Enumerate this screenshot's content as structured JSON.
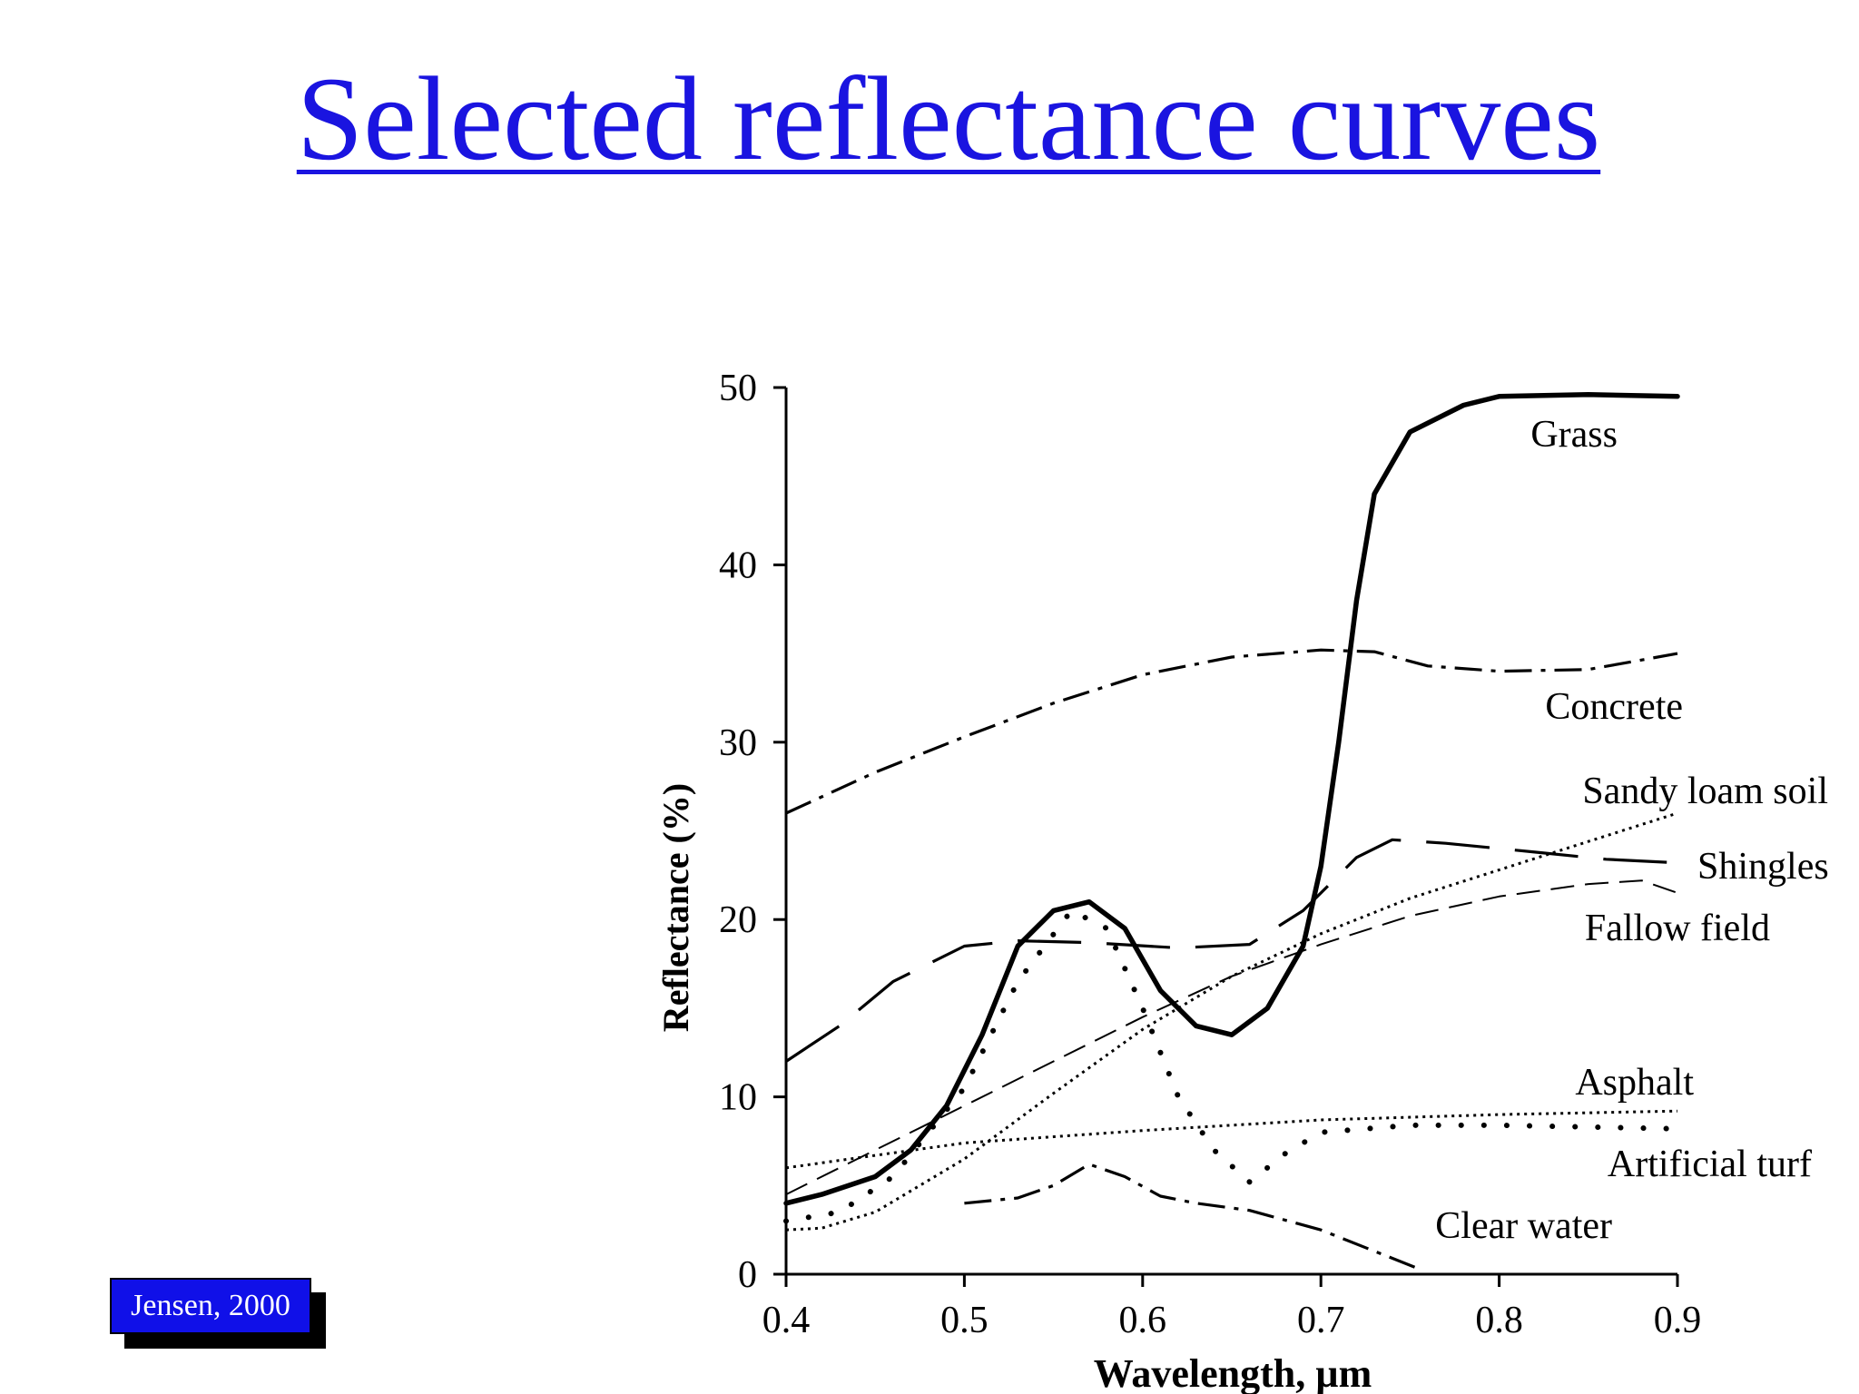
{
  "slide": {
    "title": "Selected reflectance curves",
    "citation": "Jensen, 2000"
  },
  "colors": {
    "title": "#1a14e0",
    "citation_bg": "#1010e8",
    "citation_text": "#ffffff"
  },
  "chart_data": {
    "type": "line",
    "xlabel": "Wavelength, µm",
    "ylabel": "Reflectance (%)",
    "xlim": [
      0.4,
      0.9
    ],
    "ylim": [
      0,
      50
    ],
    "xticks": [
      "0.4",
      "0.5",
      "0.6",
      "0.7",
      "0.8",
      "0.9"
    ],
    "yticks": [
      "0",
      "10",
      "20",
      "30",
      "40",
      "50"
    ],
    "grid": false,
    "legend": "inline labels at right end of each curve",
    "series": [
      {
        "name": "Grass",
        "style": "solid-thick",
        "x": [
          0.4,
          0.42,
          0.45,
          0.47,
          0.49,
          0.51,
          0.53,
          0.55,
          0.57,
          0.59,
          0.61,
          0.63,
          0.65,
          0.67,
          0.69,
          0.7,
          0.71,
          0.72,
          0.73,
          0.75,
          0.78,
          0.8,
          0.85,
          0.9
        ],
        "y": [
          4,
          4.5,
          5.5,
          7,
          9.5,
          13.5,
          18.5,
          20.5,
          21,
          19.5,
          16,
          14,
          13.5,
          15,
          18.5,
          23,
          30,
          38,
          44,
          47.5,
          49,
          49.5,
          49.6,
          49.5
        ]
      },
      {
        "name": "Concrete",
        "style": "dash-dot",
        "x": [
          0.4,
          0.45,
          0.5,
          0.55,
          0.6,
          0.65,
          0.7,
          0.73,
          0.76,
          0.8,
          0.85,
          0.9
        ],
        "y": [
          26,
          28.3,
          30.3,
          32.2,
          33.8,
          34.8,
          35.2,
          35.1,
          34.3,
          34,
          34.1,
          35
        ]
      },
      {
        "name": "Sandy loam soil",
        "style": "dotted-fine",
        "x": [
          0.4,
          0.42,
          0.45,
          0.5,
          0.55,
          0.6,
          0.65,
          0.7,
          0.75,
          0.8,
          0.85,
          0.9
        ],
        "y": [
          2.5,
          2.6,
          3.5,
          6.5,
          10.2,
          13.8,
          16.8,
          19.2,
          21.2,
          22.8,
          24.4,
          26
        ]
      },
      {
        "name": "Shingles",
        "style": "long-dash",
        "x": [
          0.4,
          0.43,
          0.46,
          0.5,
          0.53,
          0.57,
          0.62,
          0.66,
          0.69,
          0.72,
          0.74,
          0.77,
          0.82,
          0.86,
          0.9
        ],
        "y": [
          12,
          14,
          16.5,
          18.5,
          18.8,
          18.7,
          18.4,
          18.6,
          20.5,
          23.5,
          24.5,
          24.3,
          23.8,
          23.4,
          23.2
        ]
      },
      {
        "name": "Fallow field",
        "style": "dashed-thin",
        "x": [
          0.4,
          0.45,
          0.5,
          0.55,
          0.6,
          0.65,
          0.7,
          0.75,
          0.8,
          0.85,
          0.88,
          0.9
        ],
        "y": [
          4.5,
          7,
          9.5,
          12,
          14.5,
          16.8,
          18.6,
          20.2,
          21.3,
          22,
          22.2,
          21.5
        ]
      },
      {
        "name": "Asphalt",
        "style": "dotted-fine",
        "x": [
          0.4,
          0.5,
          0.6,
          0.7,
          0.8,
          0.9
        ],
        "y": [
          6,
          7.4,
          8.1,
          8.7,
          9,
          9.2
        ]
      },
      {
        "name": "Artificial turf",
        "style": "dotted-heavy",
        "x": [
          0.4,
          0.43,
          0.46,
          0.5,
          0.53,
          0.56,
          0.58,
          0.6,
          0.62,
          0.64,
          0.66,
          0.68,
          0.7,
          0.75,
          0.8,
          0.85,
          0.9
        ],
        "y": [
          3,
          3.5,
          5.5,
          10.5,
          16.5,
          20.5,
          19.5,
          15,
          10,
          7,
          5.2,
          6.8,
          8,
          8.4,
          8.4,
          8.3,
          8.2
        ]
      },
      {
        "name": "Clear water",
        "style": "dash-dot",
        "x": [
          0.5,
          0.53,
          0.55,
          0.57,
          0.59,
          0.61,
          0.63,
          0.66,
          0.7,
          0.73,
          0.755
        ],
        "y": [
          4,
          4.3,
          5,
          6.2,
          5.5,
          4.4,
          4,
          3.6,
          2.5,
          1.3,
          0.3
        ]
      }
    ]
  }
}
